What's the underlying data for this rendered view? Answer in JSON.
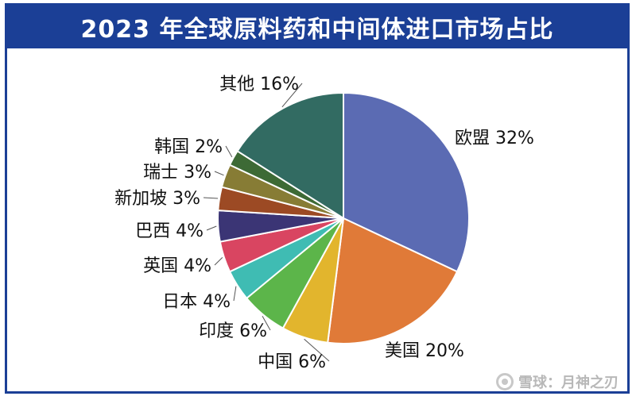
{
  "title": "2023 年全球原料药和中间体进口市场占比",
  "watermark": "雪球：月神之刃",
  "chart_data": {
    "type": "pie",
    "title": "2023 年全球原料药和中间体进口市场占比",
    "start": "12 o'clock, clockwise",
    "slices": [
      {
        "name": "欧盟",
        "value": 32,
        "label": "欧盟 32%",
        "color": "#5b6bb3"
      },
      {
        "name": "美国",
        "value": 20,
        "label": "美国 20%",
        "color": "#e07a38"
      },
      {
        "name": "中国",
        "value": 6,
        "label": "中国 6%",
        "color": "#e2b52d"
      },
      {
        "name": "印度",
        "value": 6,
        "label": "印度 6%",
        "color": "#5cb54a"
      },
      {
        "name": "日本",
        "value": 4,
        "label": "日本 4%",
        "color": "#3fbcb3"
      },
      {
        "name": "英国",
        "value": 4,
        "label": "英国 4%",
        "color": "#d94561"
      },
      {
        "name": "巴西",
        "value": 4,
        "label": "巴西 4%",
        "color": "#3b3575"
      },
      {
        "name": "新加坡",
        "value": 3,
        "label": "新加坡 3%",
        "color": "#9c4a24"
      },
      {
        "name": "瑞士",
        "value": 3,
        "label": "瑞士 3%",
        "color": "#877c35"
      },
      {
        "name": "韩国",
        "value": 2,
        "label": "韩国 2%",
        "color": "#3d6a35"
      },
      {
        "name": "其他",
        "value": 16,
        "label": "其他 16%",
        "color": "#326b62"
      }
    ]
  }
}
